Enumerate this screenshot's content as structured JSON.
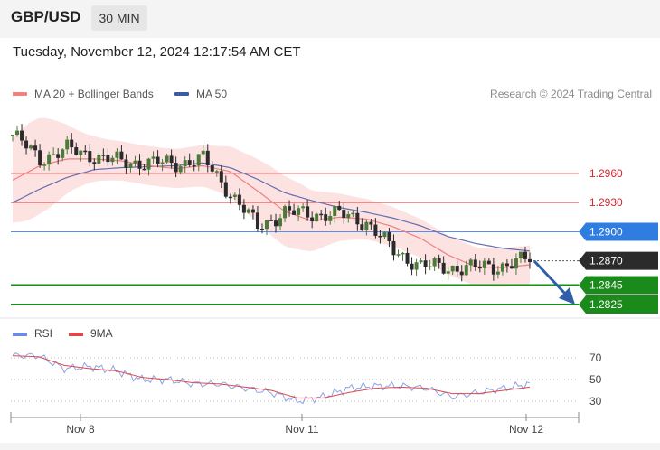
{
  "header": {
    "pair": "GBP/USD",
    "timeframe": "30 MIN",
    "datetime": "Tuesday, November 12, 2024 12:17:54 AM CET"
  },
  "legend": {
    "ma20": "MA 20 + Bollinger Bands",
    "ma50": "MA 50",
    "credit": "Research © 2024 Trading Central"
  },
  "rsi_legend": {
    "rsi": "RSI",
    "ma9": "9MA"
  },
  "colors": {
    "ma20": "#f08080",
    "band": "#fde0e0",
    "ma50": "#6270b0",
    "bullish": "#2b2b2b",
    "resistance": "#f06060",
    "pivot": "#4a7fe8",
    "current": "#2b2b2b",
    "support": "#1f8a1f",
    "rsi": "#6b8be0",
    "rsi_ma": "#e04848",
    "arrow": "#2f5fa8"
  },
  "chart_data": [
    {
      "type": "candlestick",
      "title": "GBP/USD",
      "timeframe": "30 MIN",
      "x_tick_labels": [
        "Nov 8",
        "Nov 11",
        "Nov 12"
      ],
      "ylim": [
        1.2815,
        1.3022
      ],
      "price_levels": [
        {
          "value": 1.296,
          "label": "1.2960",
          "kind": "resistance"
        },
        {
          "value": 1.293,
          "label": "1.2930",
          "kind": "resistance"
        },
        {
          "value": 1.29,
          "label": "1.2900",
          "kind": "pivot"
        },
        {
          "value": 1.287,
          "label": "1.2870",
          "kind": "current"
        },
        {
          "value": 1.2845,
          "label": "1.2845",
          "kind": "support"
        },
        {
          "value": 1.2825,
          "label": "1.2825",
          "kind": "support"
        }
      ],
      "series": [
        {
          "name": "MA 20",
          "approx_values": [
            1.2953,
            1.2968,
            1.2975,
            1.2975,
            1.2973,
            1.2968,
            1.2965,
            1.2968,
            1.2962,
            1.2942,
            1.2921,
            1.2911,
            1.2915,
            1.2913,
            1.2905,
            1.2893,
            1.2876,
            1.2864,
            1.2863,
            1.2866
          ]
        },
        {
          "name": "MA 50",
          "approx_values": [
            1.293,
            1.2944,
            1.2956,
            1.2964,
            1.2966,
            1.2967,
            1.2968,
            1.2971,
            1.2966,
            1.2954,
            1.294,
            1.2932,
            1.2925,
            1.292,
            1.2914,
            1.2906,
            1.2895,
            1.2888,
            1.2883,
            1.288
          ]
        },
        {
          "name": "Price",
          "approx_values": [
            1.3,
            1.2975,
            1.2985,
            1.2978,
            1.2972,
            1.2971,
            1.297,
            1.2975,
            1.294,
            1.2905,
            1.292,
            1.2918,
            1.2918,
            1.291,
            1.288,
            1.2865,
            1.2863,
            1.2863,
            1.2865,
            1.2872
          ]
        }
      ],
      "trend_forecast": "down toward 1.2845 / 1.2825"
    },
    {
      "type": "line",
      "title": "RSI",
      "ylim": [
        20,
        80
      ],
      "y_ticks": [
        70,
        50,
        30
      ],
      "series": [
        {
          "name": "RSI",
          "approx_values": [
            72,
            72,
            60,
            62,
            58,
            50,
            50,
            46,
            46,
            42,
            38,
            30,
            34,
            42,
            44,
            44,
            42,
            34,
            38,
            42,
            46
          ]
        },
        {
          "name": "9MA",
          "approx_values": [
            72,
            71,
            63,
            60,
            58,
            52,
            50,
            47,
            46,
            43,
            40,
            33,
            33,
            38,
            42,
            43,
            42,
            37,
            37,
            40,
            43
          ]
        }
      ]
    }
  ]
}
